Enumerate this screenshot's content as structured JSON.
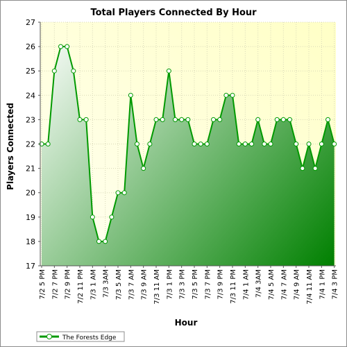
{
  "chart_data": {
    "type": "area",
    "title": "Total Players Connected By Hour",
    "xlabel": "Hour",
    "ylabel": "Players Connected",
    "ylim": [
      17,
      27
    ],
    "y_ticks": [
      17,
      18,
      19,
      20,
      21,
      22,
      23,
      24,
      25,
      26,
      27
    ],
    "grid": true,
    "legend_position": "bottom-left",
    "colors": {
      "plot_bg_light": "#fffff0",
      "plot_bg_dark": "#ffffc8",
      "area_light": "#ffffff",
      "area_dark": "#008000",
      "line": "#009900",
      "marker_fill": "#ffffff"
    },
    "x": [
      "7/2 5 PM",
      "7/2 6 PM",
      "7/2 7 PM",
      "7/2 8 PM",
      "7/2 9 PM",
      "7/2 10 PM",
      "7/2 11 PM",
      "7/3 12 AM",
      "7/3 1 AM",
      "7/3 2 AM",
      "7/3 3 AM",
      "7/3 4 AM",
      "7/3 5 AM",
      "7/3 6 AM",
      "7/3 7 AM",
      "7/3 8 AM",
      "7/3 9 AM",
      "7/3 10 AM",
      "7/3 11 AM",
      "7/3 12 PM",
      "7/3 1 PM",
      "7/3 2 PM",
      "7/3 3 PM",
      "7/3 4 PM",
      "7/3 5 PM",
      "7/3 6 PM",
      "7/3 7 PM",
      "7/3 8 PM",
      "7/3 9 PM",
      "7/3 10 PM",
      "7/3 11 PM",
      "7/4 12 AM",
      "7/4 1 AM",
      "7/4 2 AM",
      "7/4 3 AM",
      "7/4 4 AM",
      "7/4 5 AM",
      "7/4 6 AM",
      "7/4 7 AM",
      "7/4 8 AM",
      "7/4 9 AM",
      "7/4 10 AM",
      "7/4 11 AM",
      "7/4 12 PM",
      "7/4 1 PM",
      "7/4 2 PM",
      "7/4 3 PM"
    ],
    "x_tick_labels": [
      "7/2 5 PM",
      "7/2 7 PM",
      "7/2 9 PM",
      "7/2 11 PM",
      "7/3 1 AM",
      "7/3 3AM",
      "7/3 5 AM",
      "7/3 7 AM",
      "7/3 9 AM",
      "7/3 11 AM",
      "7/3 1 PM",
      "7/3 3 PM",
      "7/3 5 PM",
      "7/3 7 PM",
      "7/3 9 PM",
      "7/3 11 PM",
      "7/4 1 AM",
      "7/4 3AM",
      "7/4 5 AM",
      "7/4 7 AM",
      "7/4 9 AM",
      "7/4 11 AM",
      "7/4 1 PM",
      "7/4 3 PM"
    ],
    "series": [
      {
        "name": "The Forests Edge",
        "values": [
          22,
          22,
          25,
          26,
          26,
          25,
          23,
          23,
          19,
          18,
          18,
          19,
          20,
          20,
          24,
          22,
          21,
          22,
          23,
          23,
          25,
          23,
          23,
          23,
          22,
          22,
          22,
          23,
          23,
          24,
          24,
          22,
          22,
          22,
          23,
          22,
          22,
          23,
          23,
          23,
          22,
          21,
          22,
          21,
          22,
          23,
          22
        ]
      }
    ]
  }
}
